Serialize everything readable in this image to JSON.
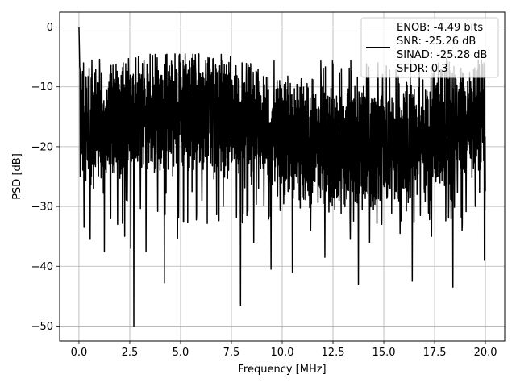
{
  "chart_data": {
    "type": "line",
    "title": "",
    "xlabel": "Frequency [MHz]",
    "ylabel": "PSD [dB]",
    "xlim": [
      -0.95,
      20.95
    ],
    "ylim": [
      -52.5,
      2.5
    ],
    "xticks": [
      0.0,
      2.5,
      5.0,
      7.5,
      10.0,
      12.5,
      15.0,
      17.5,
      20.0
    ],
    "xtick_labels": [
      "0.0",
      "2.5",
      "5.0",
      "7.5",
      "10.0",
      "12.5",
      "15.0",
      "17.5",
      "20.0"
    ],
    "yticks": [
      0,
      -10,
      -20,
      -30,
      -40,
      -50
    ],
    "ytick_labels": [
      "0",
      "−10",
      "−20",
      "−30",
      "−40",
      "−50"
    ],
    "grid": true,
    "legend_position": "top-right",
    "legend_lines": [
      "ENOB: -4.49 bits",
      "SNR: -25.26 dB",
      "SINAD: -25.28 dB",
      "SFDR: 0.3"
    ],
    "series": [
      {
        "color": "#000000",
        "description": "noise-like PSD across 0–20 MHz, mostly between about -8 dB and -28 dB with deep notches",
        "x_range": [
          0.0,
          20.0
        ],
        "peak": {
          "x": 0.0,
          "y": 0.0
        },
        "notable_dips": [
          {
            "x": 0.25,
            "y": -33.5
          },
          {
            "x": 0.55,
            "y": -35.5
          },
          {
            "x": 1.25,
            "y": -37.5
          },
          {
            "x": 1.9,
            "y": -33.0
          },
          {
            "x": 2.25,
            "y": -35.0
          },
          {
            "x": 2.55,
            "y": -37.0
          },
          {
            "x": 2.7,
            "y": -50.0
          },
          {
            "x": 3.3,
            "y": -37.5
          },
          {
            "x": 4.2,
            "y": -42.8
          },
          {
            "x": 4.85,
            "y": -35.3
          },
          {
            "x": 5.15,
            "y": -32.5
          },
          {
            "x": 6.05,
            "y": -29.0
          },
          {
            "x": 7.1,
            "y": -30.0
          },
          {
            "x": 7.95,
            "y": -46.5
          },
          {
            "x": 8.6,
            "y": -36.0
          },
          {
            "x": 9.45,
            "y": -40.5
          },
          {
            "x": 10.5,
            "y": -41.0
          },
          {
            "x": 11.4,
            "y": -34.0
          },
          {
            "x": 12.1,
            "y": -38.5
          },
          {
            "x": 12.8,
            "y": -29.0
          },
          {
            "x": 13.35,
            "y": -35.5
          },
          {
            "x": 13.75,
            "y": -43.0
          },
          {
            "x": 14.3,
            "y": -36.0
          },
          {
            "x": 14.9,
            "y": -33.0
          },
          {
            "x": 15.8,
            "y": -34.5
          },
          {
            "x": 16.4,
            "y": -42.5
          },
          {
            "x": 16.8,
            "y": -31.5
          },
          {
            "x": 17.35,
            "y": -35.0
          },
          {
            "x": 18.4,
            "y": -43.5
          },
          {
            "x": 18.85,
            "y": -34.0
          },
          {
            "x": 19.5,
            "y": -30.0
          },
          {
            "x": 19.95,
            "y": -39.0
          }
        ]
      }
    ]
  }
}
